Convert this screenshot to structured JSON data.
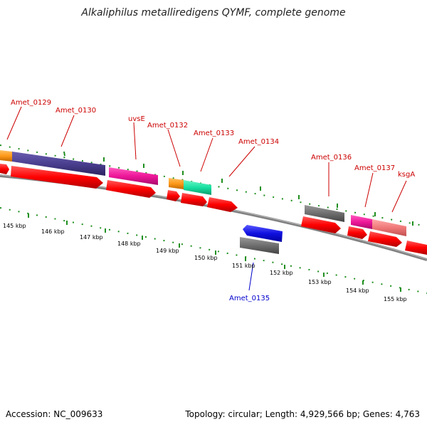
{
  "title": "Alkaliphilus metalliredigens QYMF, complete genome",
  "footer": {
    "accession": "Accession: NC_009633",
    "summary": "Topology: circular; Length: 4,929,566 bp; Genes: 4,763"
  },
  "scale_labels": [
    "145 kbp",
    "146 kbp",
    "147 kbp",
    "148 kbp",
    "149 kbp",
    "150 kbp",
    "151 kbp",
    "152 kbp",
    "153 kbp",
    "154 kbp",
    "155 kbp"
  ],
  "genes_top": [
    {
      "label": "Amet_0129"
    },
    {
      "label": "Amet_0130"
    },
    {
      "label": "uvsE"
    },
    {
      "label": "Amet_0132"
    },
    {
      "label": "Amet_0133"
    },
    {
      "label": "Amet_0134"
    },
    {
      "label": "Amet_0136"
    },
    {
      "label": "Amet_0137"
    },
    {
      "label": "ksgA"
    }
  ],
  "genes_bottom": [
    {
      "label": "Amet_0135"
    }
  ],
  "colors": {
    "gene_label": "#cc0000",
    "reverse_gene_label": "#0000cc",
    "cds_forward": "#ff0000",
    "cds_reverse": "#1010e0",
    "gene_orange": "#ff9a1a",
    "gene_purple": "#4a3f8f",
    "gene_magenta": "#ee1799",
    "gene_teal": "#18e0a0",
    "gene_gray": "#6e6e6e",
    "gene_salmon": "#f07878",
    "tick": "#1f8f1f",
    "backbone": "#808080"
  }
}
